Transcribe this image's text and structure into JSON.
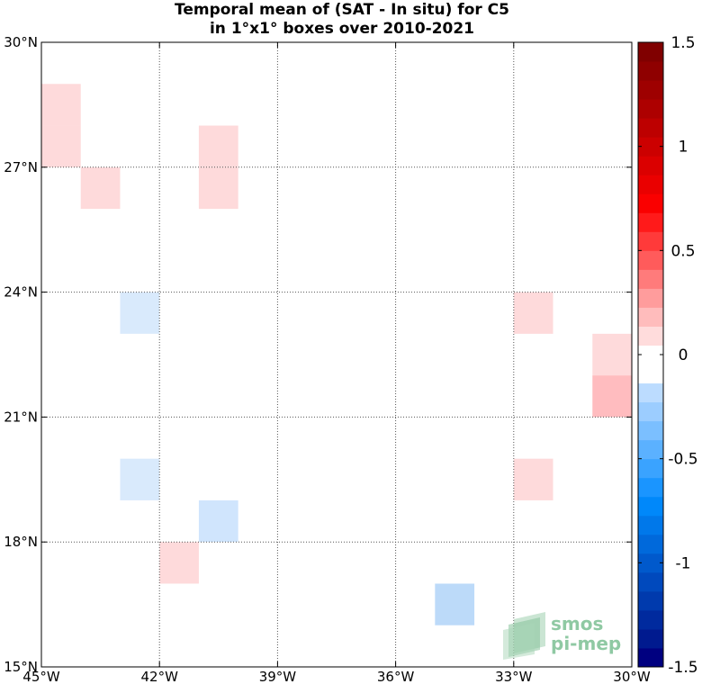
{
  "chart_data": {
    "type": "heatmap",
    "title_line1": "Temporal mean of (SAT - In situ) for C5",
    "title_line2": "in 1°x1° boxes over 2010-2021",
    "xlim": [
      -45,
      -30
    ],
    "ylim": [
      15,
      30
    ],
    "xticks": [
      {
        "value": -45,
        "label": "45°W"
      },
      {
        "value": -42,
        "label": "42°W"
      },
      {
        "value": -39,
        "label": "39°W"
      },
      {
        "value": -36,
        "label": "36°W"
      },
      {
        "value": -33,
        "label": "33°W"
      },
      {
        "value": -30,
        "label": "30°W"
      }
    ],
    "yticks": [
      {
        "value": 30,
        "label": "30°N"
      },
      {
        "value": 27,
        "label": "27°N"
      },
      {
        "value": 24,
        "label": "24°N"
      },
      {
        "value": 21,
        "label": "21°N"
      },
      {
        "value": 18,
        "label": "18°N"
      },
      {
        "value": 15,
        "label": "15°N"
      }
    ],
    "grid": true,
    "cells": [
      {
        "lon": -45,
        "lat": 28,
        "value": 0.15
      },
      {
        "lon": -45,
        "lat": 27,
        "value": 0.15
      },
      {
        "lon": -44,
        "lat": 26,
        "value": 0.15
      },
      {
        "lon": -41,
        "lat": 27,
        "value": 0.15
      },
      {
        "lon": -41,
        "lat": 26,
        "value": 0.15
      },
      {
        "lon": -43,
        "lat": 23,
        "value": -0.15
      },
      {
        "lon": -43,
        "lat": 19,
        "value": -0.15
      },
      {
        "lon": -41,
        "lat": 18,
        "value": -0.25
      },
      {
        "lon": -42,
        "lat": 17,
        "value": 0.15
      },
      {
        "lon": -35,
        "lat": 16,
        "value": -0.3
      },
      {
        "lon": -33,
        "lat": 23,
        "value": 0.15
      },
      {
        "lon": -33,
        "lat": 19,
        "value": 0.15
      },
      {
        "lon": -31,
        "lat": 22,
        "value": 0.15
      },
      {
        "lon": -31,
        "lat": 21,
        "value": 0.3
      }
    ],
    "colorbar": {
      "min": -1.5,
      "max": 1.5,
      "step": 0.1,
      "ticks": [
        {
          "value": 1.5,
          "label": "1.5"
        },
        {
          "value": 1,
          "label": "1"
        },
        {
          "value": 0.5,
          "label": "0.5"
        },
        {
          "value": 0,
          "label": "0"
        },
        {
          "value": -0.5,
          "label": "-0.5"
        },
        {
          "value": -1,
          "label": "-1"
        },
        {
          "value": -1.5,
          "label": "-1.5"
        }
      ],
      "colors": [
        "#000080",
        "#001a8f",
        "#002a9e",
        "#003aad",
        "#0049bd",
        "#0059cc",
        "#0069db",
        "#0078ea",
        "#0088fa",
        "#1a95ff",
        "#3aa3ff",
        "#5bb1ff",
        "#7bbfff",
        "#9ccdff",
        "#bcdcff",
        "#ffffff",
        "#ffffff",
        "#ffdcdc",
        "#ffbcbc",
        "#ff9c9c",
        "#ff7b7b",
        "#ff5b5b",
        "#ff3a3a",
        "#ff1a1a",
        "#fa0000",
        "#ea0000",
        "#db0000",
        "#cc0000",
        "#bd0000",
        "#ad0000",
        "#9e0000",
        "#8f0000",
        "#800000"
      ]
    },
    "cell_colors": {
      "0.15": "#fedadb",
      "-0.15": "#d9eafc",
      "-0.25": "#d0e5fd",
      "-0.3": "#bcdaf9",
      "0.3": "#ffbcbf"
    }
  },
  "logo": {
    "line1": "smos",
    "line2": "pi-mep"
  }
}
